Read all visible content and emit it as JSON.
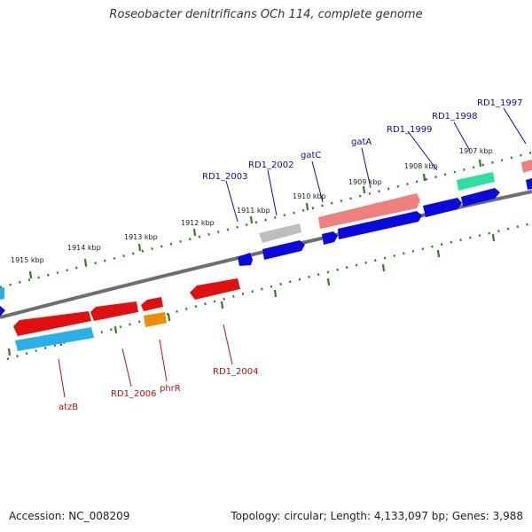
{
  "title": "Roseobacter denitrificans OCh 114, complete genome",
  "footer": {
    "accession": "Accession: NC_008209",
    "summary": "Topology: circular; Length: 4,133,097 bp; Genes: 3,988"
  },
  "colors": {
    "forward_label": "#0a0ab0",
    "reverse_label": "#c01010",
    "backbone": "#7a7a7a",
    "ticks": "#2e7d1e"
  },
  "ticks": [
    "1915 kbp",
    "1914 kbp",
    "1913 kbp",
    "1912 kbp",
    "1911 kbp",
    "1910 kbp",
    "1909 kbp",
    "1908 kbp",
    "1907 kbp"
  ],
  "forward_labels": [
    "RD1_2003",
    "RD1_2002",
    "gatC",
    "gatA",
    "RD1_1999",
    "RD1_1998",
    "RD1_1997"
  ],
  "reverse_labels": [
    "atzB",
    "RD1_2006",
    "phrR",
    "RD1_2004"
  ]
}
